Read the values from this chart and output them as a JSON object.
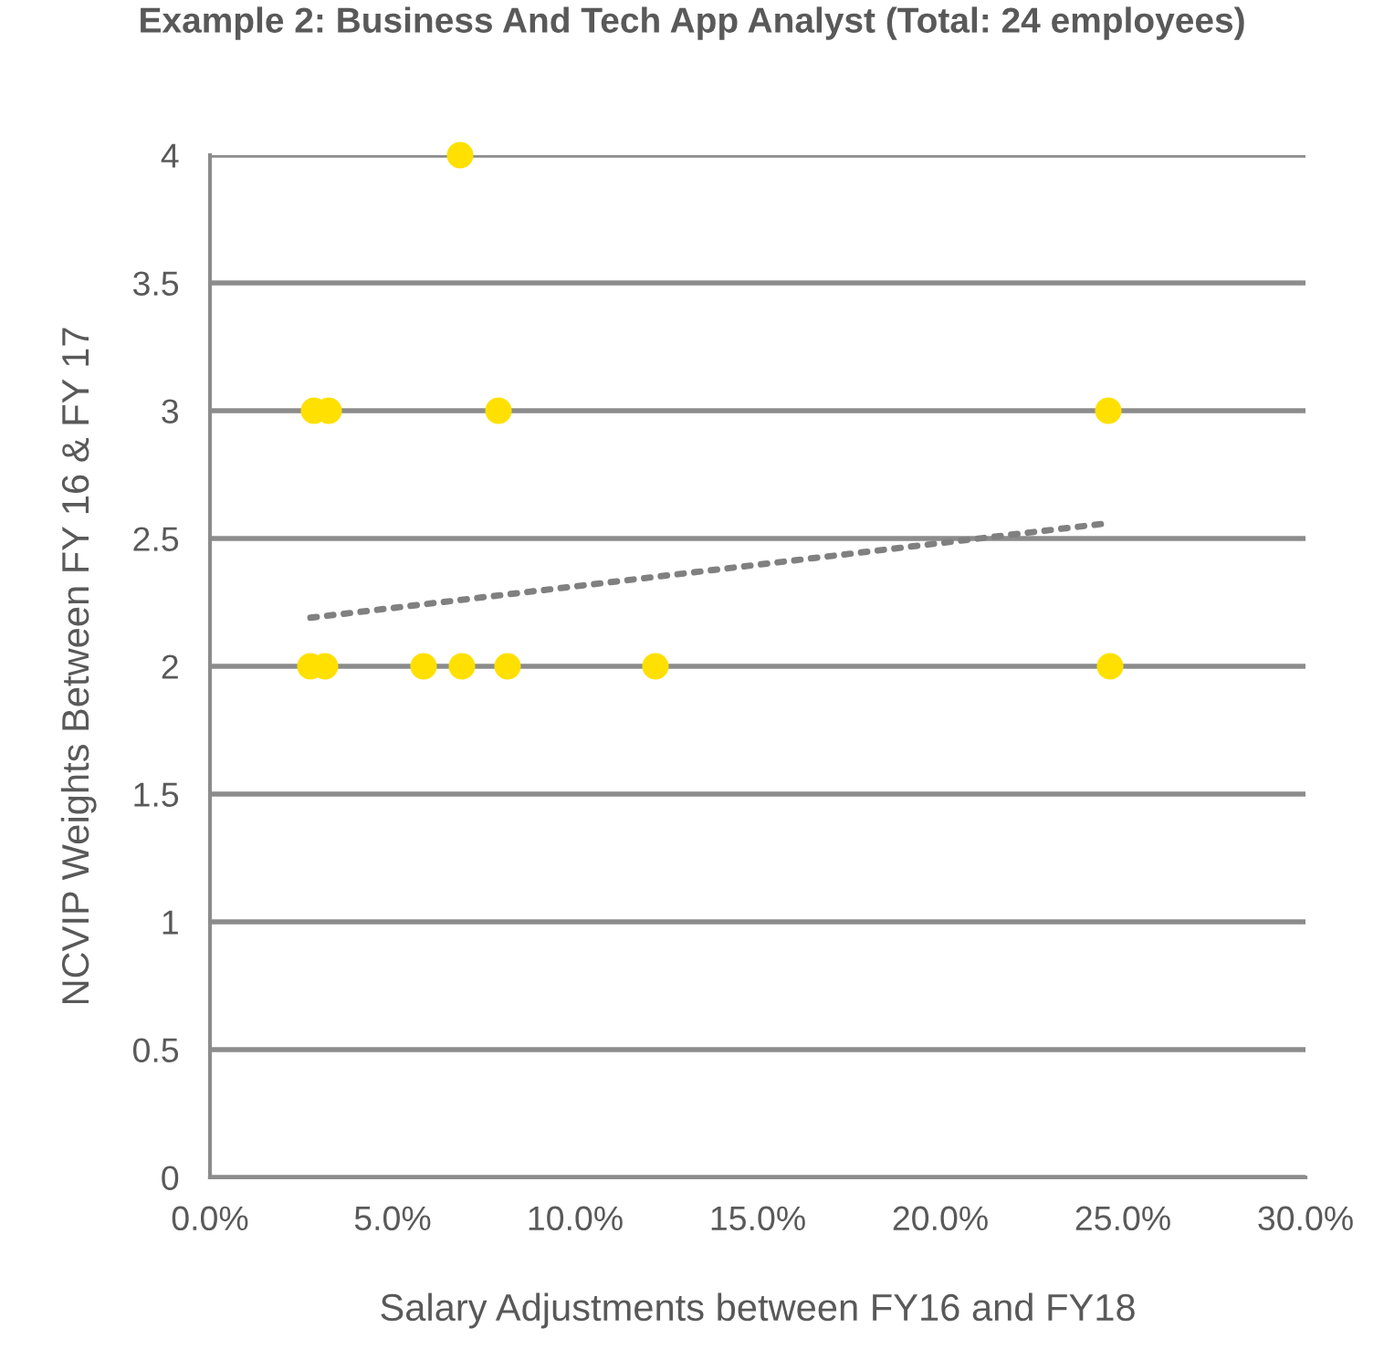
{
  "chart_data": {
    "type": "scatter",
    "title": "Example 2: Business And Tech App Analyst (Total: 24 employees)",
    "xlabel": "Salary Adjustments between FY16 and FY18",
    "ylabel": "NCVIP Weights Between FY 16 & FY 17",
    "series": [
      {
        "color": "#ffe000",
        "marker": "circle",
        "x": [
          6.85,
          2.85,
          3.25,
          7.9,
          24.6,
          2.75,
          3.15,
          5.85,
          6.9,
          8.15,
          12.2,
          24.65
        ],
        "values": [
          4,
          3,
          3,
          3,
          3,
          2,
          2,
          2,
          2,
          2,
          2,
          2
        ]
      },
      {
        "type": "line",
        "color": "#808080",
        "line_style": "dotted",
        "marker": "none",
        "x": [
          2.75,
          24.6
        ],
        "values": [
          2.19,
          2.56
        ]
      }
    ],
    "xlim": [
      0,
      30
    ],
    "xticks": [
      {
        "value": 0,
        "label": "0.0%"
      },
      {
        "value": 5,
        "label": "5.0%"
      },
      {
        "value": 10,
        "label": "10.0%"
      },
      {
        "value": 15,
        "label": "15.0%"
      },
      {
        "value": 20,
        "label": "20.0%"
      },
      {
        "value": 25,
        "label": "25.0%"
      },
      {
        "value": 30,
        "label": "30.0%"
      }
    ],
    "ylim": [
      0,
      4
    ],
    "yticks": [
      0,
      0.5,
      1,
      1.5,
      2,
      2.5,
      3,
      3.5,
      4
    ],
    "grid": "y",
    "legend": false
  }
}
